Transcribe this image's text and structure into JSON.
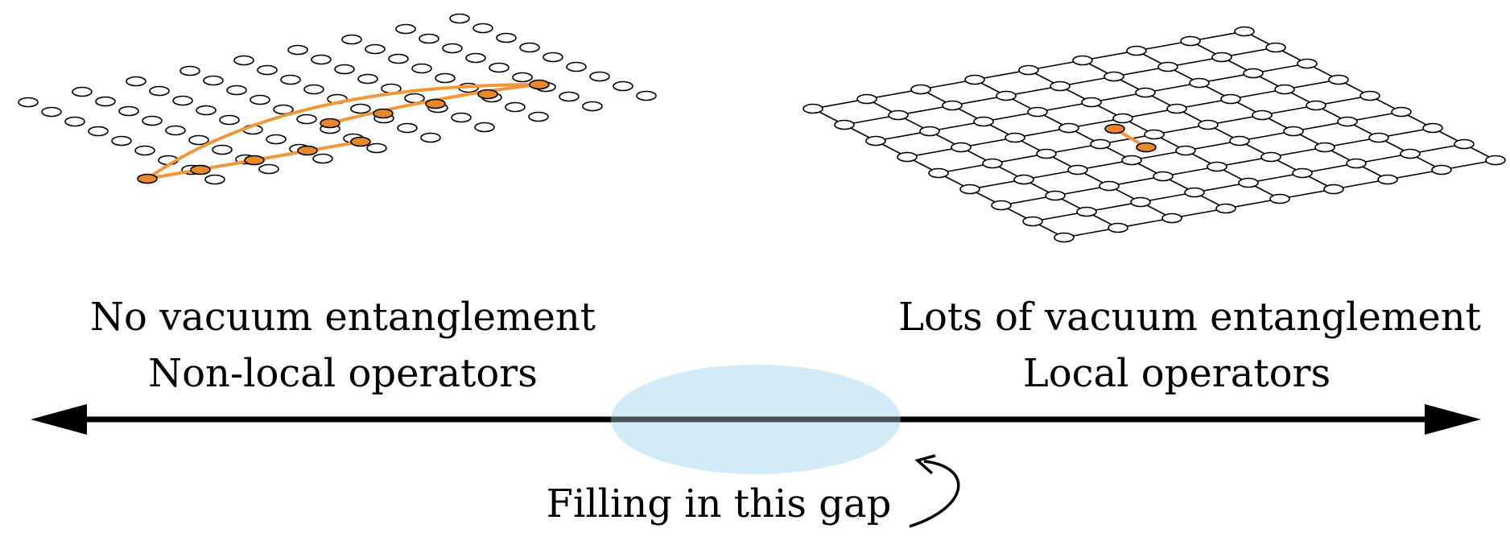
{
  "left_panel": {
    "line1": "No vacuum entanglement",
    "line2": "Non-local operators"
  },
  "right_panel": {
    "line1": "Lots of vacuum entanglement",
    "line2": "Local operators"
  },
  "gap": {
    "caption": "Filling in this gap"
  },
  "colors": {
    "highlight": "#F0973A",
    "highlight_fill": "#E8872E",
    "ellipse": "#D3EBF6",
    "ink": "#000000"
  },
  "lattice": {
    "rows": 9,
    "cols": 9
  }
}
